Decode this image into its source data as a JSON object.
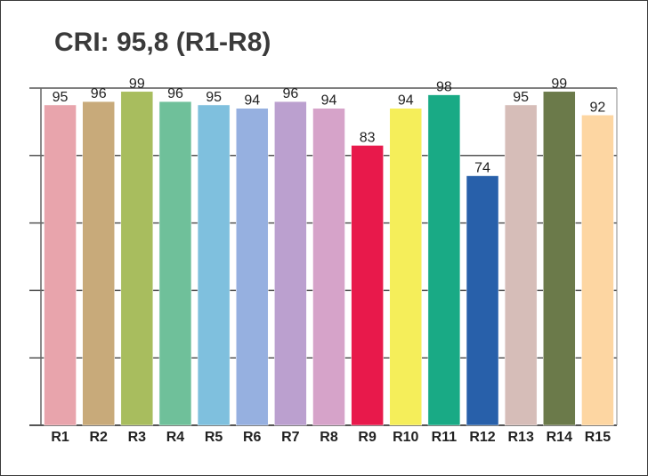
{
  "chart_data": {
    "type": "bar",
    "title": "CRI: 95,8 (R1-R8)",
    "xlabel": "",
    "ylabel": "",
    "categories": [
      "R1",
      "R2",
      "R3",
      "R4",
      "R5",
      "R6",
      "R7",
      "R8",
      "R9",
      "R10",
      "R11",
      "R12",
      "R13",
      "R14",
      "R15"
    ],
    "values": [
      95,
      96,
      99,
      96,
      95,
      94,
      96,
      94,
      83,
      94,
      98,
      74,
      95,
      99,
      92
    ],
    "colors": [
      "#E8A4AC",
      "#C8AA7A",
      "#A8BD5E",
      "#6FC09A",
      "#7FC0DE",
      "#96B0E0",
      "#BBA0CF",
      "#D6A3C9",
      "#E8194B",
      "#F5EE5A",
      "#19AA85",
      "#2860AA",
      "#D6BDB8",
      "#6B7A4A",
      "#FDD6A2"
    ],
    "ylim": [
      0,
      100
    ],
    "grid": true,
    "legend": "none"
  }
}
